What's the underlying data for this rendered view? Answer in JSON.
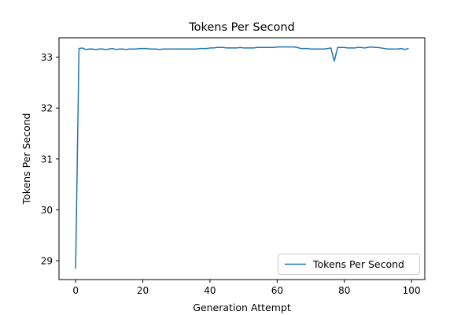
{
  "chart_data": {
    "type": "line",
    "title": "Tokens Per Second",
    "xlabel": "Generation Attempt",
    "ylabel": "Tokens Per Second",
    "xlim": [
      -4.95,
      103.95
    ],
    "ylim": [
      28.63,
      33.38
    ],
    "xticks": [
      0,
      20,
      40,
      60,
      80,
      100
    ],
    "yticks": [
      29,
      30,
      31,
      32,
      33
    ],
    "grid": false,
    "legend": {
      "position": "lower right",
      "entries": [
        "Tokens Per Second"
      ]
    },
    "series": [
      {
        "name": "Tokens Per Second",
        "color": "#1f77b4",
        "x": [
          0,
          1,
          2,
          3,
          4,
          5,
          6,
          7,
          8,
          9,
          10,
          11,
          12,
          13,
          14,
          15,
          16,
          17,
          18,
          19,
          20,
          21,
          22,
          23,
          24,
          25,
          26,
          27,
          28,
          29,
          30,
          31,
          32,
          33,
          34,
          35,
          36,
          37,
          38,
          39,
          40,
          41,
          42,
          43,
          44,
          45,
          46,
          47,
          48,
          49,
          50,
          51,
          52,
          53,
          54,
          55,
          56,
          57,
          58,
          59,
          60,
          61,
          62,
          63,
          64,
          65,
          66,
          67,
          68,
          69,
          70,
          71,
          72,
          73,
          74,
          75,
          76,
          77,
          78,
          79,
          80,
          81,
          82,
          83,
          84,
          85,
          86,
          87,
          88,
          89,
          90,
          91,
          92,
          93,
          94,
          95,
          96,
          97,
          98,
          99
        ],
        "values": [
          28.85,
          33.17,
          33.18,
          33.15,
          33.16,
          33.16,
          33.15,
          33.16,
          33.16,
          33.15,
          33.16,
          33.17,
          33.15,
          33.16,
          33.16,
          33.15,
          33.16,
          33.16,
          33.16,
          33.17,
          33.17,
          33.17,
          33.16,
          33.16,
          33.16,
          33.15,
          33.16,
          33.16,
          33.16,
          33.16,
          33.16,
          33.16,
          33.16,
          33.16,
          33.16,
          33.16,
          33.16,
          33.17,
          33.17,
          33.17,
          33.18,
          33.18,
          33.19,
          33.19,
          33.19,
          33.18,
          33.18,
          33.18,
          33.18,
          33.19,
          33.18,
          33.18,
          33.18,
          33.18,
          33.19,
          33.19,
          33.19,
          33.19,
          33.19,
          33.19,
          33.2,
          33.2,
          33.2,
          33.2,
          33.2,
          33.2,
          33.19,
          33.17,
          33.17,
          33.17,
          33.16,
          33.16,
          33.16,
          33.16,
          33.16,
          33.17,
          33.18,
          32.92,
          33.19,
          33.19,
          33.19,
          33.18,
          33.18,
          33.18,
          33.19,
          33.19,
          33.18,
          33.19,
          33.2,
          33.19,
          33.19,
          33.18,
          33.17,
          33.16,
          33.16,
          33.16,
          33.16,
          33.17,
          33.15,
          33.17
        ]
      }
    ]
  }
}
